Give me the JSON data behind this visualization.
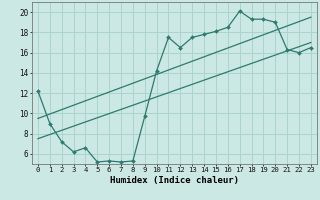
{
  "xlabel": "Humidex (Indice chaleur)",
  "bg_color": "#cce8e4",
  "line_color": "#2d7a70",
  "grid_color": "#aad4cc",
  "xlim": [
    -0.5,
    23.5
  ],
  "ylim": [
    5.0,
    21.0
  ],
  "yticks": [
    6,
    8,
    10,
    12,
    14,
    16,
    18,
    20
  ],
  "xticks": [
    0,
    1,
    2,
    3,
    4,
    5,
    6,
    7,
    8,
    9,
    10,
    11,
    12,
    13,
    14,
    15,
    16,
    17,
    18,
    19,
    20,
    21,
    22,
    23
  ],
  "line1_x": [
    0,
    1,
    2,
    3,
    4,
    5,
    6,
    7,
    8,
    9,
    10,
    11,
    12,
    13,
    14,
    15,
    16,
    17,
    18,
    19,
    20,
    21,
    22,
    23
  ],
  "line1_y": [
    12.2,
    9.0,
    7.2,
    6.2,
    6.6,
    5.2,
    5.3,
    5.2,
    5.3,
    9.7,
    14.2,
    17.5,
    16.5,
    17.5,
    17.8,
    18.1,
    18.5,
    20.1,
    19.3,
    19.3,
    19.0,
    16.3,
    16.0,
    16.5
  ],
  "line2_x": [
    0,
    23
  ],
  "line2_y": [
    7.5,
    17.0
  ],
  "line3_x": [
    0,
    23
  ],
  "line3_y": [
    9.5,
    19.5
  ]
}
